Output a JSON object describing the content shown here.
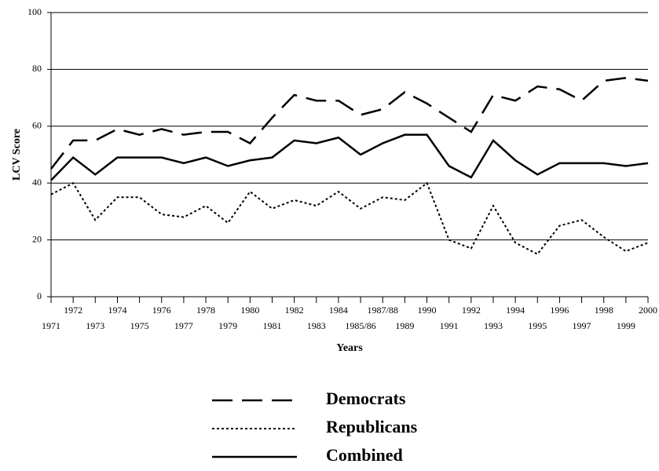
{
  "chart_data": {
    "type": "line",
    "y_label": "LCV Score",
    "x_label": "Years",
    "categories": [
      "1971",
      "1972",
      "1973",
      "1974",
      "1975",
      "1976",
      "1977",
      "1978",
      "1979",
      "1980",
      "1981",
      "1982",
      "1983",
      "1984",
      "1985/86",
      "1987/88",
      "1989",
      "1990",
      "1991",
      "1992",
      "1993",
      "1994",
      "1995",
      "1996",
      "1997",
      "1998",
      "1999",
      "2000"
    ],
    "series": [
      {
        "name": "Democrats",
        "color": "#000000",
        "style": "dashed",
        "values": [
          45,
          55,
          55,
          59,
          57,
          59,
          57,
          58,
          58,
          54,
          63,
          71,
          69,
          69,
          64,
          66,
          72,
          68,
          63,
          58,
          71,
          69,
          74,
          73,
          69,
          76,
          77,
          76
        ]
      },
      {
        "name": "Republicans",
        "color": "#000000",
        "style": "dotted",
        "values": [
          36,
          40,
          27,
          35,
          35,
          29,
          28,
          32,
          26,
          37,
          31,
          34,
          32,
          37,
          31,
          35,
          34,
          40,
          20,
          17,
          32,
          19,
          15,
          25,
          27,
          21,
          16,
          19
        ]
      },
      {
        "name": "Combined",
        "color": "#000000",
        "style": "solid",
        "values": [
          41,
          49,
          43,
          49,
          49,
          49,
          47,
          49,
          46,
          48,
          49,
          55,
          54,
          56,
          50,
          54,
          57,
          57,
          46,
          42,
          55,
          48,
          43,
          47,
          47,
          47,
          46,
          47
        ]
      }
    ],
    "ylim": [
      0,
      100
    ],
    "yticks": [
      0,
      20,
      40,
      60,
      80,
      100
    ],
    "grid": true,
    "legend": "bottom"
  }
}
